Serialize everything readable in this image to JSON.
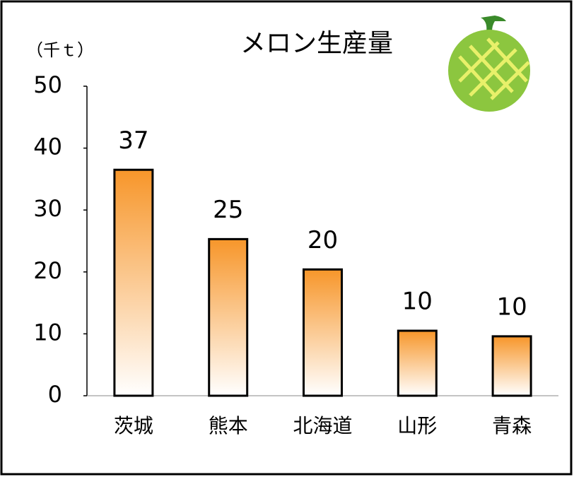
{
  "chart_data": {
    "type": "bar",
    "title": "メロン生産量",
    "y_label": "（千ｔ）",
    "categories": [
      "茨城",
      "熊本",
      "北海道",
      "山形",
      "青森"
    ],
    "values": [
      36.5,
      25.3,
      20.4,
      10.5,
      9.6
    ],
    "value_labels": [
      "37",
      "25",
      "20",
      "10",
      "10"
    ],
    "color": "#f7962a",
    "ylim": [
      0,
      50
    ],
    "yticks": [
      0,
      10,
      20,
      30,
      40,
      50
    ],
    "grid": false
  }
}
